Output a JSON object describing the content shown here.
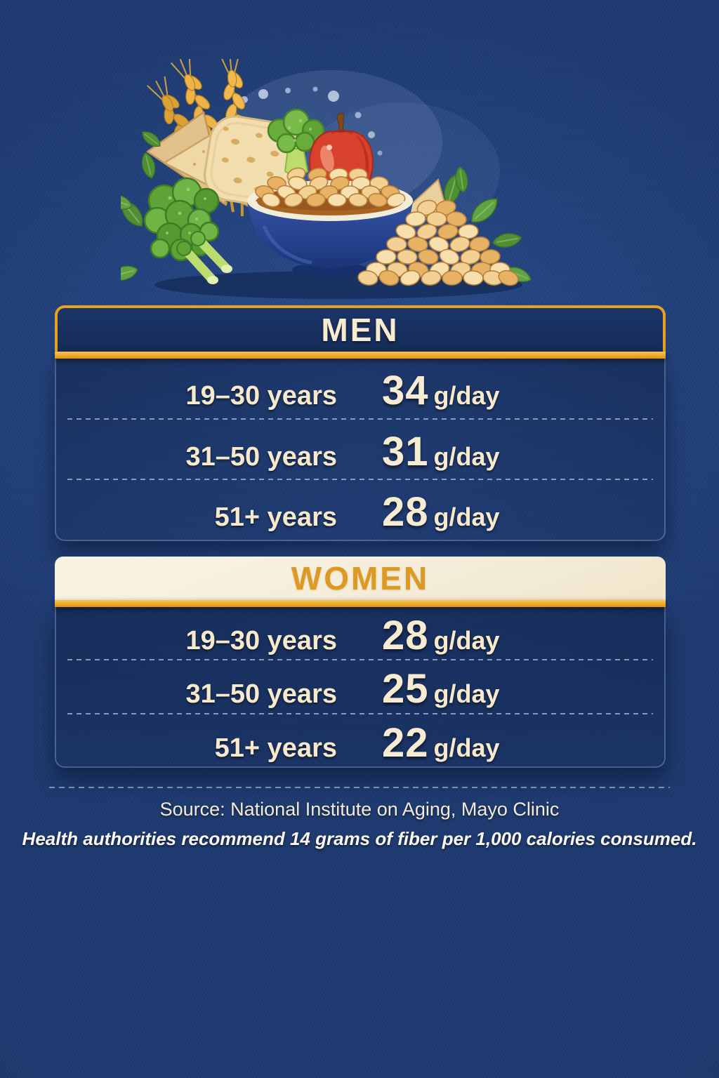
{
  "chart_data": [
    {
      "type": "table",
      "title": "MEN",
      "categories": [
        "19–30 years",
        "31–50 years",
        "51+ years"
      ],
      "values": [
        34,
        31,
        28
      ],
      "unit": "g/day"
    },
    {
      "type": "table",
      "title": "WOMEN",
      "categories": [
        "19–30 years",
        "31–50 years",
        "51+ years"
      ],
      "values": [
        28,
        25,
        22
      ],
      "unit": "g/day"
    }
  ],
  "illustration": {
    "name": "fiber-rich-foods",
    "items": [
      "wheat-stalks",
      "pita-bread",
      "bread-slice",
      "broccoli",
      "apple",
      "leafy-greens",
      "bowl-of-beans",
      "nut-pile"
    ]
  },
  "men_table": {
    "title": "MEN",
    "rows": [
      {
        "age": "19–30 years",
        "value": "34",
        "unit": "g/day"
      },
      {
        "age": "31–50 years",
        "value": "31",
        "unit": "g/day"
      },
      {
        "age": "51+ years",
        "value": "28",
        "unit": "g/day"
      }
    ]
  },
  "women_table": {
    "title": "WOMEN",
    "rows": [
      {
        "age": "19–30 years",
        "value": "28",
        "unit": "g/day"
      },
      {
        "age": "31–50 years",
        "value": "25",
        "unit": "g/day"
      },
      {
        "age": "51+ years",
        "value": "22",
        "unit": "g/day"
      }
    ]
  },
  "footer": {
    "source": "Source: National Institute on Aging, Mayo Clinic",
    "note": "Health authorities recommend 14 grams of fiber per 1,000 calories consumed."
  },
  "colors": {
    "background": "#1D3A70",
    "panel_navy": "#17315F",
    "gold": "#EDA51F",
    "cream": "#F6EDD6",
    "women_title_gold": "#DC9A25",
    "text_cream": "#F7EBD2",
    "note_white": "#FBF8F1"
  }
}
